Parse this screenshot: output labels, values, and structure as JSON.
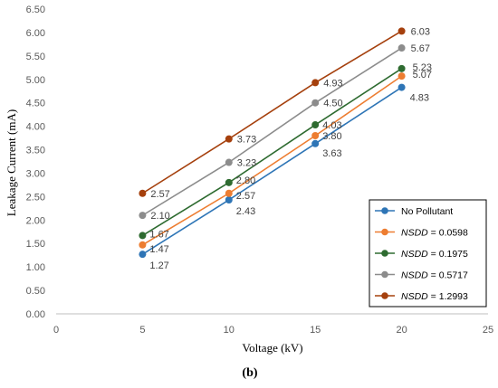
{
  "chart_data": {
    "type": "line",
    "xlabel": "Voltage (kV)",
    "ylabel": "Leakage Current (mA)",
    "xlim": [
      0,
      25
    ],
    "ylim": [
      0,
      6.5
    ],
    "xticks": [
      "0",
      "5",
      "10",
      "15",
      "20",
      "25"
    ],
    "yticks": [
      "0.00",
      "0.50",
      "1.00",
      "1.50",
      "2.00",
      "2.50",
      "3.00",
      "3.50",
      "4.00",
      "4.50",
      "5.00",
      "5.50",
      "6.00",
      "6.50"
    ],
    "grid": false,
    "legend_position": "bottom-right",
    "x": [
      5,
      10,
      15,
      20
    ],
    "series": [
      {
        "name": "No Pollutant",
        "legend_prefix": "",
        "legend_value": "",
        "color": "#2E75B6",
        "values": [
          1.27,
          2.43,
          3.63,
          4.83
        ],
        "labels": [
          "1.27",
          "2.43",
          "3.63",
          "4.83"
        ]
      },
      {
        "name": "NSDD = 0.0598",
        "legend_prefix": "NSDD",
        "legend_value": " = 0.0598",
        "color": "#ED7D31",
        "values": [
          1.47,
          2.57,
          3.8,
          5.07
        ],
        "labels": [
          "1.47",
          "2.57",
          "3.80",
          "5.07"
        ]
      },
      {
        "name": "NSDD = 0.1975",
        "legend_prefix": "NSDD",
        "legend_value": " = 0.1975",
        "color": "#2E6B30",
        "values": [
          1.67,
          2.8,
          4.03,
          5.23
        ],
        "labels": [
          "1.67",
          "2.80",
          "4.03",
          "5.23"
        ]
      },
      {
        "name": "NSDD = 0.5717",
        "legend_prefix": "NSDD",
        "legend_value": " = 0.5717",
        "color": "#8C8C8C",
        "values": [
          2.1,
          3.23,
          4.5,
          5.67
        ],
        "labels": [
          "2.10",
          "3.23",
          "4.50",
          "5.67"
        ]
      },
      {
        "name": "NSDD = 1.2993",
        "legend_prefix": "NSDD",
        "legend_value": " = 1.2993",
        "color": "#A5400D",
        "values": [
          2.57,
          3.73,
          4.93,
          6.03
        ],
        "labels": [
          "2.57",
          "3.73",
          "4.93",
          "6.03"
        ]
      }
    ]
  },
  "caption": {
    "open": "(",
    "letter": "b",
    "close": ")"
  }
}
